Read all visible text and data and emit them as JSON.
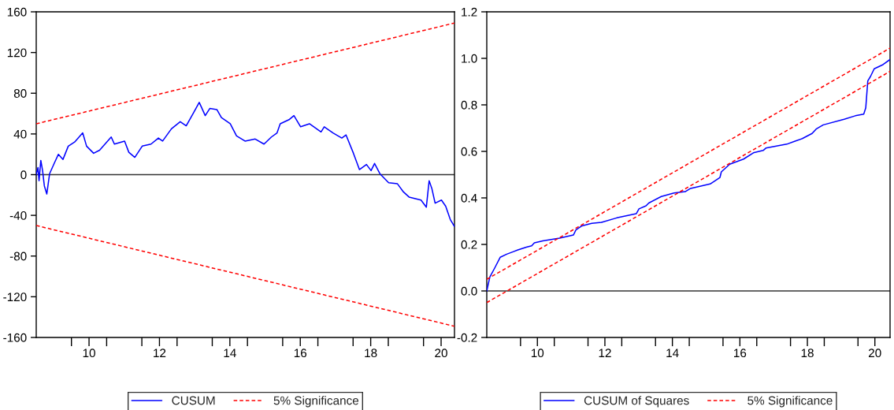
{
  "chart_data": [
    {
      "type": "line",
      "xlim": [
        8.5,
        20.38
      ],
      "ylim": [
        -160,
        160
      ],
      "yticks": [
        -160,
        -120,
        -80,
        -40,
        0,
        40,
        80,
        120,
        160
      ],
      "xticks": [
        {
          "value": 9.5,
          "label": null
        },
        10,
        {
          "value": 10.5,
          "label": null
        },
        {
          "value": 11.5,
          "label": null
        },
        12,
        {
          "value": 12.5,
          "label": null
        },
        {
          "value": 13.5,
          "label": null
        },
        14,
        {
          "value": 14.5,
          "label": null
        },
        {
          "value": 15.5,
          "label": null
        },
        16,
        {
          "value": 16.5,
          "label": null
        },
        {
          "value": 17.5,
          "label": null
        },
        18,
        {
          "value": 18.5,
          "label": null
        },
        {
          "value": 19.5,
          "label": null
        },
        20
      ],
      "grid": false,
      "legend": "bottom",
      "ref_lines": [
        {
          "axis": "y",
          "value": 0,
          "label": null,
          "color": "#333333",
          "line_style": "solid"
        }
      ],
      "series": [
        {
          "name": "CUSUM",
          "color": "#0000ff",
          "line_style": "solid",
          "x": [
            8.5,
            8.55,
            8.58,
            8.63,
            8.68,
            8.73,
            8.8,
            8.88,
            9.01,
            9.13,
            9.26,
            9.41,
            9.59,
            9.82,
            9.93,
            10.13,
            10.3,
            10.63,
            10.72,
            11.01,
            11.13,
            11.3,
            11.51,
            11.76,
            11.97,
            12.09,
            12.34,
            12.59,
            12.76,
            12.97,
            13.13,
            13.3,
            13.43,
            13.63,
            13.76,
            14.01,
            14.19,
            14.43,
            14.72,
            14.97,
            15.18,
            15.34,
            15.43,
            15.68,
            15.82,
            16.01,
            16.26,
            16.59,
            16.68,
            16.93,
            17.18,
            17.3,
            17.51,
            17.68,
            17.88,
            18.01,
            18.11,
            18.26,
            18.51,
            18.76,
            18.93,
            19.09,
            19.43,
            19.58,
            19.66,
            19.74,
            19.83,
            20.01,
            20.13,
            20.26,
            20.38
          ],
          "values": [
            0,
            7,
            -6,
            14,
            4,
            -11,
            -19,
            1,
            11,
            20,
            15,
            28,
            32,
            41,
            28,
            21,
            24,
            37,
            30,
            33,
            22,
            17,
            28,
            30,
            36,
            33,
            45,
            52,
            48,
            61,
            71,
            58,
            65,
            64,
            56,
            50,
            38,
            33,
            35,
            30,
            37,
            41,
            50,
            54,
            58,
            47,
            50,
            42,
            47,
            41,
            36,
            39,
            21,
            5,
            10,
            4,
            11,
            1,
            -8,
            -9,
            -17,
            -22,
            -25,
            -32,
            -6,
            -14,
            -28,
            -25,
            -31,
            -44,
            -51
          ]
        },
        {
          "name": "5% Significance",
          "color": "#ff0000",
          "line_style": "dashed",
          "x": [
            8.5,
            20.38
          ],
          "values": [
            50,
            149
          ]
        },
        {
          "color": "#ff0000",
          "line_style": "dashed",
          "x": [
            8.5,
            20.38
          ],
          "values": [
            -50,
            -149
          ]
        }
      ]
    },
    {
      "type": "line",
      "xlim": [
        8.5,
        20.45
      ],
      "ylim": [
        -0.2,
        1.2
      ],
      "yticks": [
        {
          "value": -0.2,
          "label": "-0.2"
        },
        {
          "value": 0.0,
          "label": "0.0"
        },
        {
          "value": 0.2,
          "label": "0.2"
        },
        {
          "value": 0.4,
          "label": "0.4"
        },
        {
          "value": 0.6,
          "label": "0.6"
        },
        {
          "value": 0.8,
          "label": "0.8"
        },
        {
          "value": 1.0,
          "label": "1.0"
        },
        {
          "value": 1.2,
          "label": "1.2"
        }
      ],
      "xticks": [
        {
          "value": 9.5,
          "label": null
        },
        10,
        {
          "value": 10.5,
          "label": null
        },
        {
          "value": 11.5,
          "label": null
        },
        12,
        {
          "value": 12.5,
          "label": null
        },
        {
          "value": 13.5,
          "label": null
        },
        14,
        {
          "value": 14.5,
          "label": null
        },
        {
          "value": 15.5,
          "label": null
        },
        16,
        {
          "value": 16.5,
          "label": null
        },
        {
          "value": 17.5,
          "label": null
        },
        18,
        {
          "value": 18.5,
          "label": null
        },
        {
          "value": 19.5,
          "label": null
        },
        20
      ],
      "grid": false,
      "legend": "bottom",
      "ref_lines": [
        {
          "axis": "y",
          "value": 0,
          "label": null,
          "color": "#333333",
          "line_style": "solid"
        }
      ],
      "series": [
        {
          "name": "CUSUM of Squares",
          "color": "#0000ff",
          "line_style": "solid",
          "x": [
            8.5,
            8.59,
            8.74,
            8.9,
            9.09,
            9.29,
            9.42,
            9.67,
            9.83,
            9.91,
            10.16,
            10.66,
            11.07,
            11.14,
            11.32,
            11.61,
            11.9,
            12.35,
            12.93,
            13.01,
            13.22,
            13.3,
            13.67,
            14.05,
            14.38,
            14.54,
            15.12,
            15.41,
            15.45,
            15.7,
            16.11,
            16.4,
            16.69,
            16.77,
            17.39,
            17.62,
            17.85,
            18.14,
            18.26,
            18.47,
            19.09,
            19.42,
            19.67,
            19.73,
            19.79,
            19.87,
            19.98,
            20.24,
            20.45
          ],
          "values": [
            0.0,
            0.06,
            0.1,
            0.145,
            0.158,
            0.169,
            0.176,
            0.188,
            0.194,
            0.207,
            0.215,
            0.227,
            0.241,
            0.262,
            0.28,
            0.291,
            0.295,
            0.314,
            0.332,
            0.353,
            0.366,
            0.378,
            0.406,
            0.421,
            0.427,
            0.441,
            0.46,
            0.488,
            0.512,
            0.545,
            0.567,
            0.594,
            0.604,
            0.614,
            0.631,
            0.643,
            0.655,
            0.677,
            0.696,
            0.714,
            0.738,
            0.753,
            0.76,
            0.787,
            0.903,
            0.922,
            0.955,
            0.973,
            0.995
          ]
        },
        {
          "name": "5% Significance",
          "color": "#ff0000",
          "line_style": "dashed",
          "x": [
            8.5,
            20.45
          ],
          "values": [
            0.05,
            1.044
          ]
        },
        {
          "color": "#ff0000",
          "line_style": "dashed",
          "x": [
            8.5,
            20.45
          ],
          "values": [
            -0.05,
            0.944
          ]
        }
      ]
    }
  ]
}
